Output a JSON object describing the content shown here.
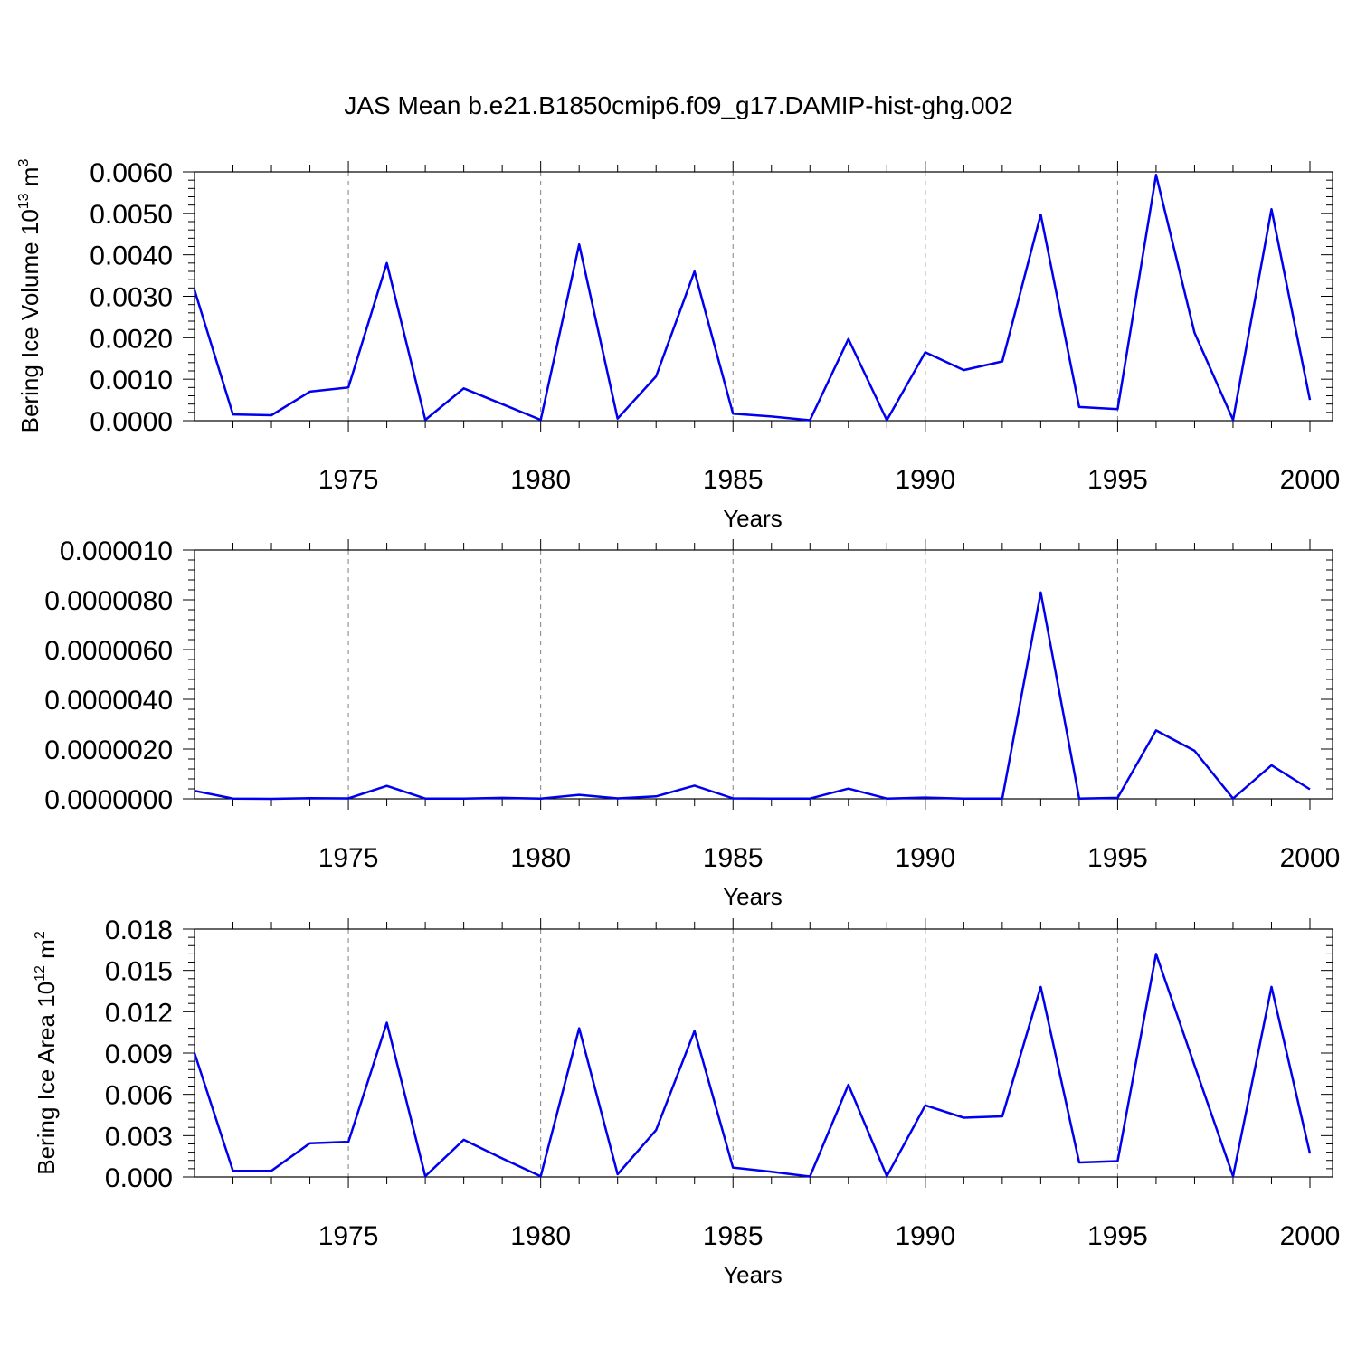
{
  "title": "JAS Mean b.e21.B1850cmip6.f09_g17.DAMIP-hist-ghg.002",
  "colors": {
    "line": "#0000ee",
    "axis": "#000000",
    "grid": "#808080"
  },
  "chart_data": [
    {
      "type": "line",
      "ylabel": "Bering Ice Volume 10",
      "ylabel_sup": "13",
      "ylabel_unit": "m",
      "ylabel_unit_sup": "3",
      "xlabel": "Years",
      "xlim": [
        1971,
        2000
      ],
      "ylim": [
        0,
        0.006
      ],
      "yticks": [
        "0.0000",
        "0.0010",
        "0.0020",
        "0.0030",
        "0.0040",
        "0.0050",
        "0.0060"
      ],
      "xticks": [
        "1975",
        "1980",
        "1985",
        "1990",
        "1995",
        "2000"
      ],
      "x": [
        1971,
        1972,
        1973,
        1974,
        1975,
        1976,
        1977,
        1978,
        1979,
        1980,
        1981,
        1982,
        1983,
        1984,
        1985,
        1986,
        1987,
        1988,
        1989,
        1990,
        1991,
        1992,
        1993,
        1994,
        1995,
        1996,
        1997,
        1998,
        1999,
        2000
      ],
      "values": [
        0.00315,
        0.00015,
        0.00013,
        0.0007,
        0.0008,
        0.0038,
        2e-05,
        0.00078,
        0.0004,
        2e-05,
        0.00425,
        5e-05,
        0.00107,
        0.0036,
        0.00017,
        0.0001,
        1e-05,
        0.00197,
        1e-05,
        0.00165,
        0.00122,
        0.00143,
        0.00497,
        0.00033,
        0.00028,
        0.00593,
        0.00212,
        2e-05,
        0.0051,
        0.0005
      ]
    },
    {
      "type": "line",
      "ylabel": "",
      "xlabel": "Years",
      "xlim": [
        1971,
        2000
      ],
      "ylim": [
        0,
        1e-05
      ],
      "yticks": [
        "0.0000000",
        "0.0000020",
        "0.0000040",
        "0.0000060",
        "0.0000080",
        "0.000010"
      ],
      "xticks": [
        "1975",
        "1980",
        "1985",
        "1990",
        "1995",
        "2000"
      ],
      "x": [
        1971,
        1972,
        1973,
        1974,
        1975,
        1976,
        1977,
        1978,
        1979,
        1980,
        1981,
        1982,
        1983,
        1984,
        1985,
        1986,
        1987,
        1988,
        1989,
        1990,
        1991,
        1992,
        1993,
        1994,
        1995,
        1996,
        1997,
        1998,
        1999,
        2000
      ],
      "values": [
        3.2e-07,
        1e-08,
        0,
        3e-08,
        2e-08,
        5.2e-07,
        1e-08,
        1e-08,
        4e-08,
        1e-08,
        1.6e-07,
        2e-08,
        1e-07,
        5.3e-07,
        2e-08,
        1e-08,
        1e-08,
        4.1e-07,
        1e-08,
        5e-08,
        1e-08,
        1e-08,
        8.3e-06,
        1e-08,
        4e-08,
        2.75e-06,
        1.93e-06,
        1e-08,
        1.35e-06,
        3.8e-07
      ]
    },
    {
      "type": "line",
      "ylabel": "Bering Ice Area 10",
      "ylabel_sup": "12",
      "ylabel_unit": "m",
      "ylabel_unit_sup": "2",
      "xlabel": "Years",
      "xlim": [
        1971,
        2000
      ],
      "ylim": [
        0,
        0.018
      ],
      "yticks": [
        "0.000",
        "0.003",
        "0.006",
        "0.009",
        "0.012",
        "0.015",
        "0.018"
      ],
      "xticks": [
        "1975",
        "1980",
        "1985",
        "1990",
        "1995",
        "2000"
      ],
      "x": [
        1971,
        1972,
        1973,
        1974,
        1975,
        1976,
        1977,
        1978,
        1979,
        1980,
        1981,
        1982,
        1983,
        1984,
        1985,
        1986,
        1987,
        1988,
        1989,
        1990,
        1991,
        1992,
        1993,
        1994,
        1995,
        1996,
        1997,
        1998,
        1999,
        2000
      ],
      "values": [
        0.009,
        0.00045,
        0.00045,
        0.00245,
        0.00255,
        0.0112,
        5e-05,
        0.0027,
        0.00135,
        5e-05,
        0.0108,
        0.0002,
        0.0034,
        0.0106,
        0.00068,
        0.00038,
        3e-05,
        0.0067,
        5e-05,
        0.0052,
        0.0043,
        0.0044,
        0.0138,
        0.00105,
        0.00115,
        0.0162,
        0.0081,
        5e-05,
        0.0138,
        0.0017
      ]
    }
  ]
}
